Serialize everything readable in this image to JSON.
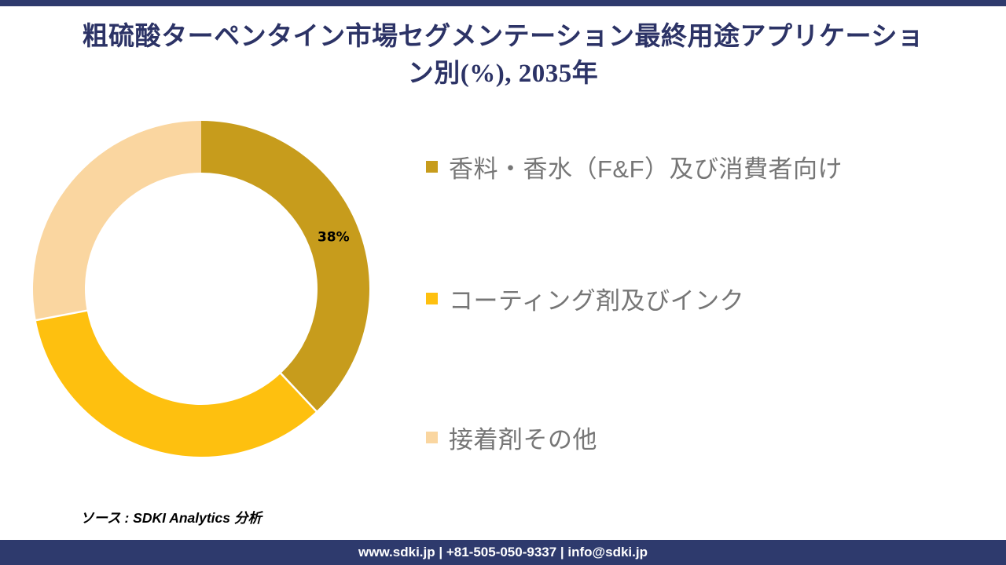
{
  "page": {
    "title_line1": "粗硫酸ターペンタイン市場セグメンテーション最終用途アプリケーショ",
    "title_line2": "ン別(%), 2035年",
    "source_note": "ソース : SDKI Analytics 分析",
    "footer_text": "www.sdki.jp | +81-505-050-9337 | info@sdki.jp",
    "colors": {
      "accent_navy": "#2E3A6D",
      "title_navy": "#2C3366",
      "legend_text_gray": "#767676",
      "data_label_black": "#000000"
    }
  },
  "chart_data": {
    "type": "pie",
    "subtype": "donut",
    "title": "粗硫酸ターペンタイン市場セグメンテーション最終用途アプリケーション別(%), 2035年",
    "unit": "%",
    "year": "2035",
    "start_angle_deg": 0,
    "donut_hole_ratio": 0.69,
    "legend_position": "right",
    "segments": [
      {
        "label": "香料・香水（F&F）及び消費者向け",
        "value": 38,
        "color": "#C79C1C",
        "data_label": "38%"
      },
      {
        "label": "コーティング剤及びインク",
        "value": 34,
        "color": "#FEC00F",
        "data_label": ""
      },
      {
        "label": "接着剤その他",
        "value": 28,
        "color": "#FAD6A0",
        "data_label": ""
      }
    ]
  }
}
